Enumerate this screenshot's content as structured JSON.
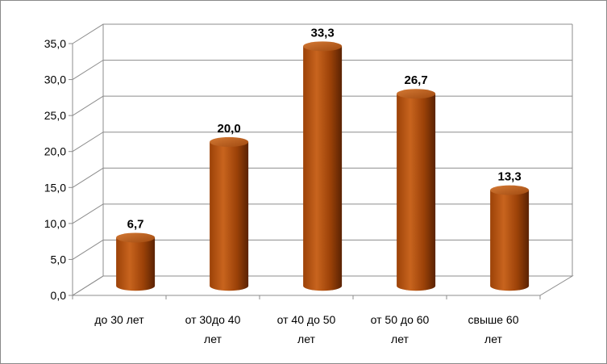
{
  "chart_data": {
    "type": "bar",
    "style": "3d-cylinder",
    "categories": [
      [
        "до 30 лет"
      ],
      [
        "от 30до 40",
        "лет"
      ],
      [
        "от 40 до 50",
        "лет"
      ],
      [
        "от 50 до 60",
        "лет"
      ],
      [
        "свыше 60",
        "лет"
      ]
    ],
    "values": [
      6.7,
      20.0,
      33.3,
      26.7,
      13.3
    ],
    "value_labels": [
      "6,7",
      "20,0",
      "33,3",
      "26,7",
      "13,3"
    ],
    "y_ticks": [
      "0,0",
      "5,0",
      "10,0",
      "15,0",
      "20,0",
      "25,0",
      "30,0",
      "35,0"
    ],
    "ylim": [
      0,
      35
    ],
    "grid": true,
    "legend": "none",
    "colors": {
      "bar_light": "#c8641e",
      "bar_mid": "#9c4208",
      "bar_dark": "#5a2203",
      "grid": "#8c8c8c"
    }
  }
}
